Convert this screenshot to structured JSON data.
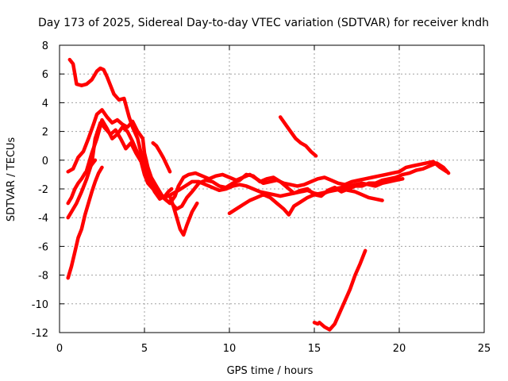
{
  "chart_data": {
    "type": "line",
    "title": "Day 173 of 2025, Sidereal Day-to-day VTEC variation (SDTVAR) for receiver kndh",
    "xlabel": "GPS time / hours",
    "ylabel": "SDTVAR / TECUs",
    "xlim": [
      0,
      25
    ],
    "ylim": [
      -12,
      8
    ],
    "xticks": [
      0,
      5,
      10,
      15,
      20,
      25
    ],
    "yticks": [
      -12,
      -10,
      -8,
      -6,
      -4,
      -2,
      0,
      2,
      4,
      6,
      8
    ],
    "grid": true,
    "color": "#ff0000",
    "series": [
      {
        "name": "track-1",
        "x": [
          0.6,
          0.8,
          0.9,
          1.0,
          1.3,
          1.6,
          1.9,
          2.2,
          2.4,
          2.6,
          2.8,
          3.0,
          3.2,
          3.5,
          3.8,
          4.1,
          4.3,
          4.6,
          4.8,
          5.0,
          5.2,
          5.5,
          5.8,
          6.1,
          6.3,
          6.5,
          6.8,
          7.0,
          7.3,
          7.6,
          8.0,
          8.4,
          8.8,
          9.2,
          9.6,
          10.0,
          10.4,
          10.8,
          11.2,
          11.6,
          12.0,
          12.4,
          12.8,
          13.2,
          13.6,
          14.0,
          14.4,
          14.8,
          15.2,
          15.6,
          16.0,
          16.4,
          16.8,
          17.2,
          17.6,
          18.0,
          18.4,
          18.8,
          19.2,
          19.6,
          20.0,
          20.4,
          20.8,
          21.2,
          21.6,
          22.0,
          22.4,
          22.8
        ],
        "y": [
          7.0,
          6.7,
          6.0,
          5.3,
          5.2,
          5.3,
          5.6,
          6.2,
          6.4,
          6.3,
          5.8,
          5.2,
          4.6,
          4.2,
          4.3,
          3.0,
          2.3,
          1.5,
          0.5,
          0.0,
          -0.8,
          -1.5,
          -2.2,
          -2.6,
          -2.8,
          -3.0,
          -2.5,
          -1.8,
          -1.2,
          -1.0,
          -0.9,
          -1.1,
          -1.3,
          -1.1,
          -1.0,
          -1.2,
          -1.4,
          -1.2,
          -1.0,
          -1.3,
          -1.6,
          -1.5,
          -1.4,
          -1.6,
          -1.7,
          -1.8,
          -1.7,
          -1.5,
          -1.3,
          -1.2,
          -1.4,
          -1.6,
          -1.7,
          -1.5,
          -1.4,
          -1.3,
          -1.2,
          -1.1,
          -1.0,
          -0.9,
          -0.8,
          -0.5,
          -0.4,
          -0.3,
          -0.2,
          -0.1,
          -0.5,
          -0.8
        ]
      },
      {
        "name": "track-2",
        "x": [
          0.5,
          0.8,
          1.1,
          1.4,
          1.7,
          2.0,
          2.2,
          2.5,
          2.8,
          3.1,
          3.4,
          3.7,
          4.0,
          4.3,
          4.6,
          4.9,
          5.0,
          5.2,
          5.4,
          5.6,
          5.8,
          6.0,
          6.3,
          6.6,
          6.9,
          7.2,
          7.5,
          7.8,
          8.2,
          8.6,
          9.0,
          9.4,
          9.8,
          10.2,
          10.6,
          11.0,
          11.4,
          11.8,
          12.2,
          12.6,
          13.0,
          13.4,
          13.8,
          14.2,
          14.6,
          15.0,
          15.4,
          15.8,
          16.2,
          16.6,
          17.0,
          17.4,
          17.8,
          18.2,
          18.6,
          19.0,
          19.4,
          19.8,
          20.2,
          20.6,
          21.0,
          21.4,
          21.8,
          22.2,
          22.6,
          22.9
        ],
        "y": [
          -0.8,
          -0.6,
          0.2,
          0.6,
          1.5,
          2.5,
          3.2,
          3.5,
          3.0,
          2.6,
          2.8,
          2.5,
          2.3,
          2.7,
          2.0,
          1.5,
          0.5,
          -0.5,
          -1.2,
          -1.6,
          -2.0,
          -2.4,
          -2.8,
          -3.0,
          -3.4,
          -3.2,
          -2.6,
          -2.2,
          -1.6,
          -1.4,
          -1.5,
          -1.8,
          -1.9,
          -1.6,
          -1.4,
          -1.0,
          -1.1,
          -1.5,
          -1.3,
          -1.2,
          -1.5,
          -1.9,
          -2.3,
          -2.1,
          -2.0,
          -2.4,
          -2.5,
          -2.1,
          -1.9,
          -2.2,
          -2.0,
          -1.8,
          -1.8,
          -1.6,
          -1.6,
          -1.4,
          -1.3,
          -1.2,
          -1.0,
          -0.9,
          -0.7,
          -0.6,
          -0.4,
          -0.2,
          -0.5,
          -0.9
        ]
      },
      {
        "name": "track-3",
        "x": [
          0.5,
          0.7,
          1.0,
          1.3,
          1.6,
          1.9,
          2.1,
          2.4,
          2.7,
          3.0,
          3.3,
          3.6,
          3.9,
          4.2,
          4.5,
          4.8,
          5.0,
          5.2,
          5.5,
          5.8,
          6.1,
          6.4,
          6.7,
          7.0,
          7.4,
          7.8,
          8.2,
          8.6,
          9.0,
          9.4,
          9.8,
          10.2,
          10.6,
          11.0,
          11.4,
          11.8,
          12.2,
          12.6,
          13.0,
          13.4,
          13.8,
          14.2,
          14.6,
          15.0,
          15.4,
          15.8,
          16.2,
          16.6,
          17.0,
          17.4,
          17.8,
          18.2,
          18.6,
          19.0,
          19.4,
          19.8,
          20.2
        ],
        "y": [
          -4.0,
          -3.6,
          -3.0,
          -2.2,
          -1.3,
          -0.2,
          1.5,
          2.6,
          2.2,
          1.8,
          2.1,
          1.5,
          0.8,
          1.2,
          0.5,
          -0.1,
          -1.0,
          -1.6,
          -2.0,
          -2.3,
          -2.6,
          -2.5,
          -2.3,
          -2.1,
          -1.8,
          -1.5,
          -1.5,
          -1.7,
          -1.9,
          -2.1,
          -2.0,
          -1.8,
          -1.7,
          -1.8,
          -2.0,
          -2.2,
          -2.3,
          -2.4,
          -2.5,
          -2.4,
          -2.3,
          -2.2,
          -2.1,
          -2.3,
          -2.4,
          -2.2,
          -2.0,
          -1.9,
          -1.8,
          -1.7,
          -1.6,
          -1.7,
          -1.8,
          -1.6,
          -1.5,
          -1.4,
          -1.3
        ]
      },
      {
        "name": "track-4",
        "x": [
          0.5,
          0.7,
          0.9,
          1.1,
          1.3,
          1.5,
          1.7,
          1.9,
          2.1
        ],
        "y": [
          -3.0,
          -2.6,
          -2.0,
          -1.6,
          -1.3,
          -0.9,
          -0.6,
          -0.3,
          0.0
        ]
      },
      {
        "name": "track-5",
        "x": [
          0.5,
          0.7,
          0.9,
          1.1,
          1.3,
          1.5,
          1.7,
          1.9,
          2.1,
          2.3,
          2.5
        ],
        "y": [
          -8.2,
          -7.4,
          -6.4,
          -5.4,
          -4.8,
          -3.8,
          -3.0,
          -2.2,
          -1.5,
          -0.9,
          -0.5
        ]
      },
      {
        "name": "track-6",
        "x": [
          1.6,
          1.9,
          2.2,
          2.5,
          2.8,
          3.1,
          3.4,
          3.7,
          4.0,
          4.3,
          4.6,
          4.9,
          5.1,
          5.3,
          5.6,
          5.9,
          6.2,
          6.4,
          6.6
        ],
        "y": [
          -0.7,
          0.5,
          1.5,
          2.8,
          2.2,
          1.5,
          1.8,
          2.3,
          2.0,
          1.3,
          0.5,
          0.0,
          -0.8,
          -1.5,
          -2.2,
          -2.7,
          -2.5,
          -2.2,
          -2.0
        ]
      },
      {
        "name": "track-7",
        "x": [
          5.5,
          5.7,
          5.9,
          6.1,
          6.3,
          6.5
        ],
        "y": [
          1.2,
          1.0,
          0.6,
          0.2,
          -0.3,
          -0.8
        ]
      },
      {
        "name": "track-8",
        "x": [
          6.5,
          6.7,
          6.9,
          7.1,
          7.3,
          7.5,
          7.8,
          8.1
        ],
        "y": [
          -2.5,
          -3.2,
          -4.0,
          -4.8,
          -5.2,
          -4.5,
          -3.6,
          -3.0
        ]
      },
      {
        "name": "track-9",
        "x": [
          10.0,
          10.4,
          10.8,
          11.2,
          11.6,
          12.0,
          12.4,
          12.8,
          13.2,
          13.5,
          13.8,
          14.2,
          14.6,
          15.0,
          15.4,
          15.8,
          16.2,
          16.6,
          17.0,
          17.4,
          17.8,
          18.2,
          18.6,
          19.0
        ],
        "y": [
          -3.7,
          -3.4,
          -3.1,
          -2.8,
          -2.6,
          -2.4,
          -2.6,
          -3.0,
          -3.4,
          -3.8,
          -3.2,
          -2.9,
          -2.6,
          -2.4,
          -2.3,
          -2.2,
          -2.1,
          -2.0,
          -2.1,
          -2.2,
          -2.4,
          -2.6,
          -2.7,
          -2.8
        ]
      },
      {
        "name": "track-10",
        "x": [
          13.0,
          13.3,
          13.6,
          13.9,
          14.2,
          14.5,
          14.8,
          15.1
        ],
        "y": [
          3.0,
          2.5,
          2.0,
          1.5,
          1.2,
          1.0,
          0.6,
          0.3
        ]
      },
      {
        "name": "track-11",
        "x": [
          15.3,
          15.6,
          15.9,
          16.2,
          16.5,
          16.8,
          17.1,
          17.4,
          17.7,
          18.0
        ],
        "y": [
          -11.3,
          -11.6,
          -11.8,
          -11.4,
          -10.6,
          -9.8,
          -9.0,
          -8.0,
          -7.2,
          -6.3
        ]
      },
      {
        "name": "track-12",
        "x": [
          15.0,
          15.2
        ],
        "y": [
          -11.3,
          -11.4
        ]
      }
    ]
  }
}
